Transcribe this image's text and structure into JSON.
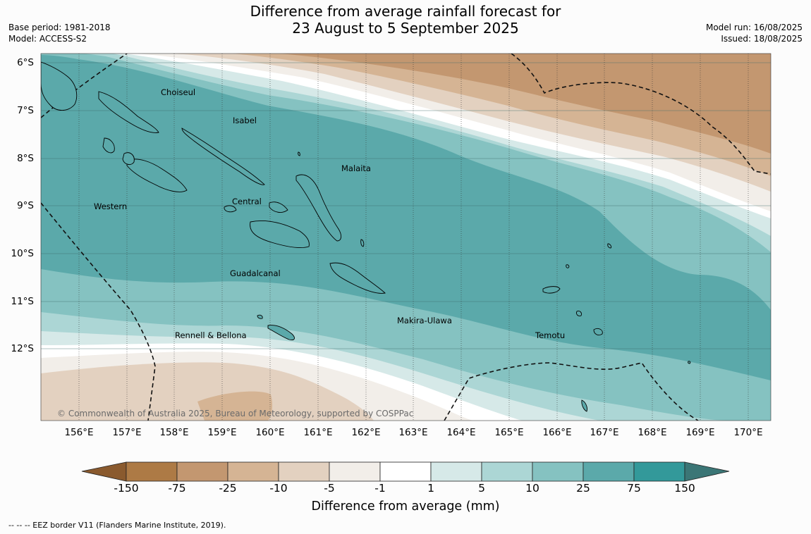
{
  "title_line1": "Difference from average rainfall forecast for",
  "title_line2": "23 August to 5 September 2025",
  "base_period": "Base period: 1981-2018",
  "model": "Model: ACCESS-S2",
  "model_run": "Model run: 16/08/2025",
  "issued": "Issued: 18/08/2025",
  "lat_labels": [
    "6°S",
    "7°S",
    "8°S",
    "9°S",
    "10°S",
    "11°S",
    "12°S"
  ],
  "lon_labels": [
    "156°E",
    "157°E",
    "158°E",
    "159°E",
    "160°E",
    "161°E",
    "162°E",
    "163°E",
    "164°E",
    "165°E",
    "166°E",
    "167°E",
    "168°E",
    "169°E",
    "170°E"
  ],
  "regions": {
    "choiseul": "Choiseul",
    "isabel": "Isabel",
    "malaita": "Malaita",
    "western": "Western",
    "central": "Central",
    "guadalcanal": "Guadalcanal",
    "makira": "Makira-Ulawa",
    "rennell": "Rennell & Bellona",
    "temotu": "Temotu"
  },
  "copyright": "© Commonwealth of Australia 2025, Bureau of Meteorology, supported by COSPPac",
  "colorbar": {
    "labels": [
      "-150",
      "-75",
      "-25",
      "-10",
      "-5",
      "-1",
      "1",
      "5",
      "10",
      "25",
      "75",
      "150"
    ],
    "colors": [
      "#8a5a2e",
      "#ad7a45",
      "#c39770",
      "#d5b494",
      "#e3d1c0",
      "#f2eee9",
      "#ffffff",
      "#d6e9e8",
      "#acd6d5",
      "#85c2c1",
      "#5ba9aa",
      "#33999a",
      "#3b7676"
    ],
    "title": "Difference from average (mm)"
  },
  "eez_note": "--  --  -- EEZ border V11 (Flanders Marine Institute, 2019)."
}
